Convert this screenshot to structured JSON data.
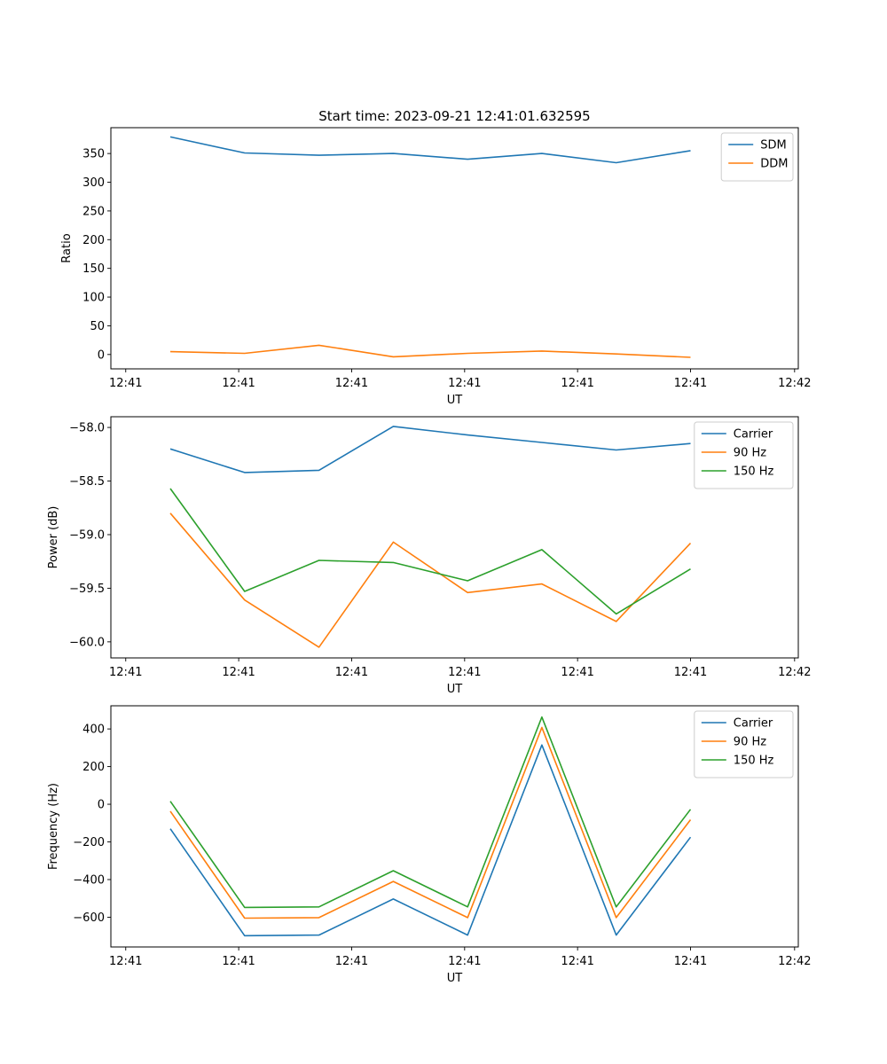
{
  "figure_title": "Start time: 2023-09-21 12:41:01.632595",
  "colors": {
    "blue": "#1f77b4",
    "orange": "#ff7f0e",
    "green": "#2ca02c"
  },
  "chart_data": [
    {
      "type": "line",
      "title": "Start time: 2023-09-21 12:41:01.632595",
      "xlabel": "UT",
      "ylabel": "Ratio",
      "x": [
        1,
        2,
        3,
        4,
        5,
        6,
        7,
        8
      ],
      "xlim": [
        0.2,
        9.45
      ],
      "xticks": [
        0.4,
        1.92,
        3.44,
        4.96,
        6.48,
        8.0,
        9.4
      ],
      "xtick_labels": [
        "12:41",
        "12:41",
        "12:41",
        "12:41",
        "12:41",
        "12:41",
        "12:42"
      ],
      "ylim": [
        -25,
        395
      ],
      "yticks": [
        0,
        50,
        100,
        150,
        200,
        250,
        300,
        350
      ],
      "ytick_labels": [
        "0",
        "50",
        "100",
        "150",
        "200",
        "250",
        "300",
        "350"
      ],
      "legend": "top-right",
      "series": [
        {
          "name": "SDM",
          "color": "#1f77b4",
          "values": [
            379,
            351,
            347,
            350,
            340,
            350,
            334,
            355
          ]
        },
        {
          "name": "DDM",
          "color": "#ff7f0e",
          "values": [
            5,
            2,
            16,
            -4,
            2,
            6,
            1,
            -5
          ]
        }
      ]
    },
    {
      "type": "line",
      "xlabel": "UT",
      "ylabel": "Power (dB)",
      "x": [
        1,
        2,
        3,
        4,
        5,
        6,
        7,
        8
      ],
      "xlim": [
        0.2,
        9.45
      ],
      "xticks": [
        0.4,
        1.92,
        3.44,
        4.96,
        6.48,
        8.0,
        9.4
      ],
      "xtick_labels": [
        "12:41",
        "12:41",
        "12:41",
        "12:41",
        "12:41",
        "12:41",
        "12:42"
      ],
      "ylim": [
        -60.15,
        -57.9
      ],
      "yticks": [
        -60.0,
        -59.5,
        -59.0,
        -58.5,
        -58.0
      ],
      "ytick_labels": [
        "−60.0",
        "−59.5",
        "−59.0",
        "−58.5",
        "−58.0"
      ],
      "legend": "top-right",
      "series": [
        {
          "name": "Carrier",
          "color": "#1f77b4",
          "values": [
            -58.2,
            -58.42,
            -58.4,
            -57.99,
            -58.07,
            -58.14,
            -58.21,
            -58.15
          ]
        },
        {
          "name": "90 Hz",
          "color": "#ff7f0e",
          "values": [
            -58.8,
            -59.61,
            -60.05,
            -59.07,
            -59.54,
            -59.46,
            -59.81,
            -59.08
          ]
        },
        {
          "name": "150 Hz",
          "color": "#2ca02c",
          "values": [
            -58.57,
            -59.53,
            -59.24,
            -59.26,
            -59.43,
            -59.14,
            -59.74,
            -59.32
          ]
        }
      ]
    },
    {
      "type": "line",
      "xlabel": "UT",
      "ylabel": "Frequency (Hz)",
      "x": [
        1,
        2,
        3,
        4,
        5,
        6,
        7,
        8
      ],
      "xlim": [
        0.2,
        9.45
      ],
      "xticks": [
        0.4,
        1.92,
        3.44,
        4.96,
        6.48,
        8.0,
        9.4
      ],
      "xtick_labels": [
        "12:41",
        "12:41",
        "12:41",
        "12:41",
        "12:41",
        "12:41",
        "12:42"
      ],
      "ylim": [
        -758,
        523
      ],
      "yticks": [
        -600,
        -400,
        -200,
        0,
        200,
        400
      ],
      "ytick_labels": [
        "−600",
        "−400",
        "−200",
        "0",
        "200",
        "400"
      ],
      "legend": "top-right",
      "series": [
        {
          "name": "Carrier",
          "color": "#1f77b4",
          "values": [
            -130,
            -698,
            -695,
            -503,
            -695,
            315,
            -695,
            -175
          ]
        },
        {
          "name": "90 Hz",
          "color": "#ff7f0e",
          "values": [
            -37,
            -605,
            -602,
            -410,
            -602,
            408,
            -602,
            -82
          ]
        },
        {
          "name": "150 Hz",
          "color": "#2ca02c",
          "values": [
            16,
            -548,
            -545,
            -353,
            -545,
            463,
            -545,
            -27
          ]
        }
      ]
    }
  ]
}
